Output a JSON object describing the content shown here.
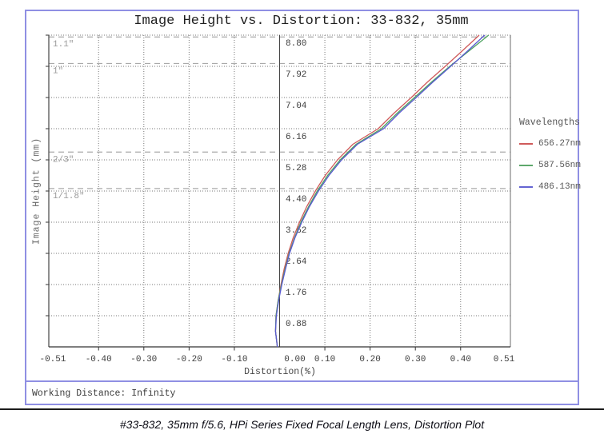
{
  "title": "Image Height vs. Distortion: 33-832, 35mm",
  "footer": {
    "working_distance": "Working Distance: Infinity"
  },
  "caption": "#33-832, 35mm f/5.6, HPi Series Fixed Focal Length Lens, Distortion Plot",
  "legend": {
    "title": "Wavelengths",
    "entries": [
      {
        "label": "656.27nm",
        "color": "#cf5a5a"
      },
      {
        "label": "587.56nm",
        "color": "#5ea86b"
      },
      {
        "label": "486.13nm",
        "color": "#6464d2"
      }
    ]
  },
  "colors": {
    "frame_blue": "#8f8fe3",
    "grid_dotted": "#777777",
    "format_dashed": "#aaaaaa",
    "axis": "#444444"
  },
  "chart_data": {
    "type": "line",
    "title": "Image Height vs. Distortion: 33-832, 35mm",
    "xlabel": "Distortion(%)",
    "ylabel": "Image Height (mm)",
    "xlim": [
      -0.51,
      0.51
    ],
    "ylim": [
      0,
      8.8
    ],
    "grid": "dotted",
    "legend_position": "right",
    "x_ticks": [
      -0.51,
      -0.4,
      -0.3,
      -0.2,
      -0.1,
      0,
      0.1,
      0.2,
      0.3,
      0.4,
      0.51
    ],
    "x_tick_labels": [
      "-0.51",
      "-0.40",
      "-0.30",
      "-0.20",
      "-0.10",
      "0.00",
      "0.10",
      "0.20",
      "0.30",
      "0.40",
      "0.51"
    ],
    "y_ticks": [
      0.88,
      1.76,
      2.64,
      3.52,
      4.4,
      5.28,
      6.16,
      7.04,
      7.92,
      8.8
    ],
    "y_tick_labels": [
      "0.88",
      "1.76",
      "2.64",
      "3.52",
      "4.40",
      "5.28",
      "6.16",
      "7.04",
      "7.92",
      "8.80"
    ],
    "sensor_format_lines": [
      {
        "label": "1.1\"",
        "image_height_mm": 8.75
      },
      {
        "label": "1\"",
        "image_height_mm": 8.0
      },
      {
        "label": "2/3\"",
        "image_height_mm": 5.5
      },
      {
        "label": "1/1.8\"",
        "image_height_mm": 4.47
      }
    ],
    "image_height_mm": [
      0,
      0.44,
      0.88,
      1.32,
      1.76,
      2.2,
      2.64,
      3.08,
      3.52,
      3.96,
      4.4,
      4.84,
      5.28,
      5.72,
      6.16,
      6.6,
      7.04,
      7.48,
      7.92,
      8.36,
      8.8
    ],
    "series": [
      {
        "name": "656.27nm",
        "color": "#cf5a5a",
        "distortion_pct": [
          -0.005,
          -0.009,
          -0.008,
          -0.003,
          0.003,
          0.01,
          0.019,
          0.03,
          0.044,
          0.06,
          0.079,
          0.101,
          0.128,
          0.162,
          0.218,
          0.253,
          0.291,
          0.327,
          0.366,
          0.404,
          0.441
        ]
      },
      {
        "name": "587.56nm",
        "color": "#4fa361",
        "distortion_pct": [
          -0.005,
          -0.009,
          -0.008,
          -0.003,
          0.004,
          0.012,
          0.021,
          0.033,
          0.047,
          0.064,
          0.083,
          0.106,
          0.134,
          0.169,
          0.225,
          0.26,
          0.298,
          0.336,
          0.376,
          0.419,
          0.462
        ]
      },
      {
        "name": "486.13nm",
        "color": "#5a5ad1",
        "distortion_pct": [
          -0.005,
          -0.009,
          -0.007,
          -0.002,
          0.005,
          0.013,
          0.022,
          0.034,
          0.049,
          0.066,
          0.086,
          0.109,
          0.137,
          0.172,
          0.23,
          0.264,
          0.302,
          0.339,
          0.378,
          0.416,
          0.453
        ]
      }
    ]
  }
}
